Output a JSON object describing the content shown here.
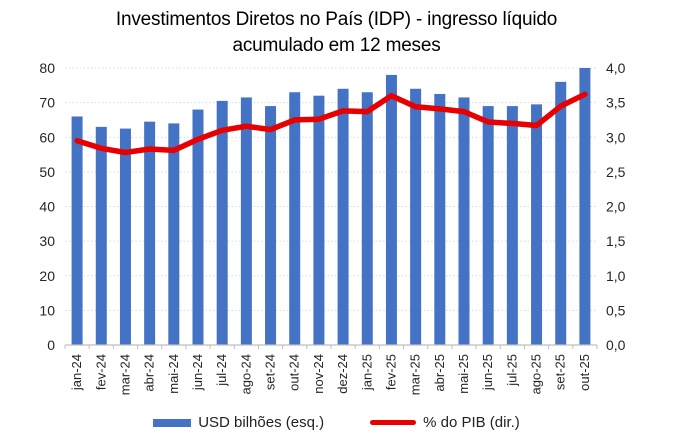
{
  "title_lines": [
    "Investimentos Diretos no País (IDP) - ingresso líquido",
    "acumulado em 12 meses"
  ],
  "legend": {
    "bars_label": "USD bilhões (esq.)",
    "line_label": "% do PIB (dir.)"
  },
  "colors": {
    "bar": "#4472C4",
    "line": "#E80000",
    "grid": "#D9D9D9",
    "axis": "#BFBFBF",
    "tick_text": "#262626"
  },
  "chart_data": {
    "type": "combo",
    "title": "Investimentos Diretos no País (IDP) - ingresso líquido acumulado em 12 meses",
    "categories": [
      "jan-24",
      "fev-24",
      "mar-24",
      "abr-24",
      "mai-24",
      "jun-24",
      "jul-24",
      "ago-24",
      "set-24",
      "out-24",
      "nov-24",
      "dez-24",
      "jan-25",
      "fev-25",
      "mar-25",
      "abr-25",
      "mai-25",
      "jun-25",
      "jul-25",
      "ago-25",
      "set-25",
      "out-25"
    ],
    "series": [
      {
        "name": "USD bilhões (esq.)",
        "type": "bar",
        "axis": "left",
        "values": [
          66,
          63,
          62.5,
          64.5,
          64,
          68,
          70.5,
          71.5,
          69,
          73,
          72,
          74,
          73,
          78,
          74,
          72.5,
          71.5,
          69,
          69,
          69.5,
          76,
          80
        ]
      },
      {
        "name": "% do PIB (dir.)",
        "type": "line",
        "axis": "right",
        "values": [
          2.95,
          2.84,
          2.78,
          2.83,
          2.81,
          2.97,
          3.1,
          3.16,
          3.11,
          3.25,
          3.26,
          3.38,
          3.37,
          3.6,
          3.44,
          3.41,
          3.37,
          3.22,
          3.2,
          3.17,
          3.45,
          3.62
        ]
      }
    ],
    "left_axis": {
      "min": 0,
      "max": 80,
      "ticks": [
        "0",
        "10",
        "20",
        "30",
        "40",
        "50",
        "60",
        "70",
        "80"
      ]
    },
    "right_axis": {
      "min": 0,
      "max": 4.0,
      "ticks": [
        "0,0",
        "0,5",
        "1,0",
        "1,5",
        "2,0",
        "2,5",
        "3,0",
        "3,5",
        "4,0"
      ]
    },
    "grid": true,
    "legend_position": "bottom"
  }
}
